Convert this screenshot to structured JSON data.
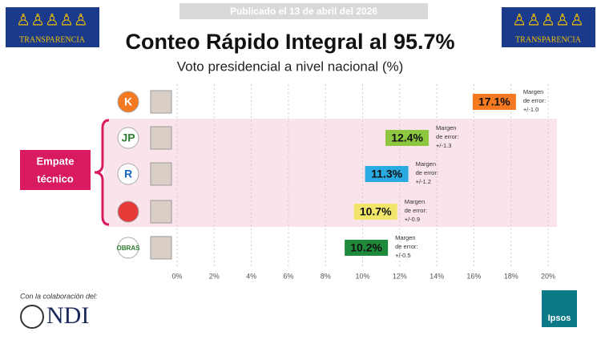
{
  "banner": "Publicado el 13 de abril del 2026",
  "brand": [
    "TRANSPARENCIA",
    "TRANSPARENCIA"
  ],
  "tie_label": [
    "Empate",
    "técnico"
  ],
  "collab": "Con la colaboración del:",
  "partner": "NDI",
  "pollster": "Ipsos",
  "chart_data": {
    "type": "bar",
    "orientation": "horizontal",
    "title": "Conteo Rápido Integral al 95.7%",
    "subtitle": "Voto presidencial a nivel nacional (%)",
    "categories": [
      "K",
      "JP",
      "R",
      null,
      "OBRAS"
    ],
    "values": [
      17.1,
      12.4,
      11.3,
      10.7,
      10.2
    ],
    "value_labels": [
      "17.1%",
      "12.4%",
      "11.3%",
      "10.7%",
      "10.2%"
    ],
    "colors": [
      "#f47920",
      "#8dc63f",
      "#29abe2",
      "#f2e56b",
      "#1e8a3c"
    ],
    "error_labels": [
      [
        "Margen",
        "de error:",
        "+/-1.0"
      ],
      [
        "Margen",
        "de error:",
        "+/-1.3"
      ],
      [
        "Margen",
        "de error:",
        "+/-1.2"
      ],
      [
        "Margen",
        "de error:",
        "+/-0.9"
      ],
      [
        "Margen",
        "de error:",
        "+/-0.5"
      ]
    ],
    "xlim": [
      0,
      20
    ],
    "xticks": [
      {
        "value": 0,
        "label": "0%"
      },
      {
        "value": 2,
        "label": "2%"
      },
      {
        "value": 4,
        "label": "4%"
      },
      {
        "value": 6,
        "label": "6%"
      },
      {
        "value": 8,
        "label": "8%"
      },
      {
        "value": 10,
        "label": "10%"
      },
      {
        "value": 12,
        "label": "12%"
      },
      {
        "value": 14,
        "label": "14%"
      },
      {
        "value": 16,
        "label": "16%"
      },
      {
        "value": 18,
        "label": "18%"
      },
      {
        "value": 20,
        "label": "20%"
      }
    ],
    "grid": true
  }
}
